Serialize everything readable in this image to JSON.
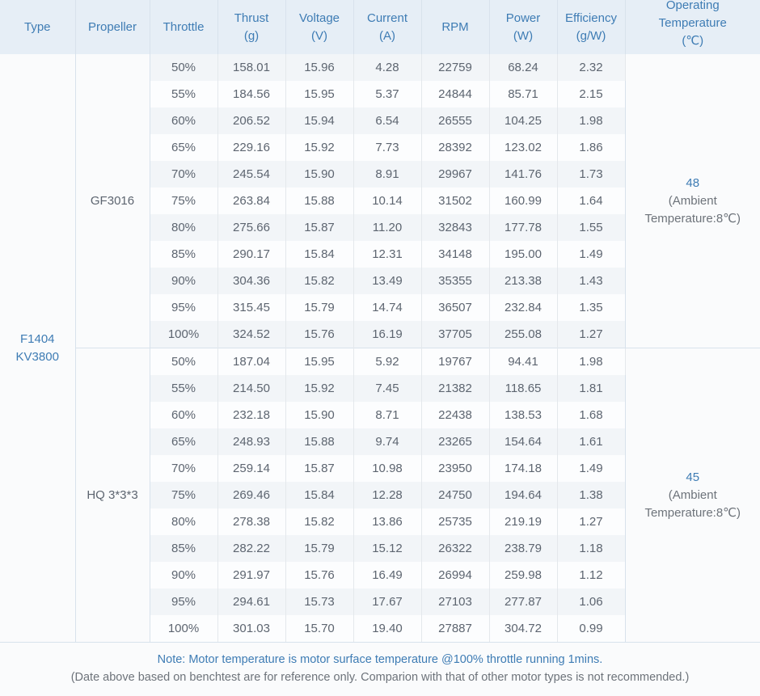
{
  "headers": {
    "type": "Type",
    "propeller": "Propeller",
    "throttle": "Throttle",
    "thrust": [
      "Thrust",
      "(g)"
    ],
    "voltage": [
      "Voltage",
      "(V)"
    ],
    "current": [
      "Current",
      "(A)"
    ],
    "rpm": "RPM",
    "power": [
      "Power",
      "(W)"
    ],
    "efficiency": [
      "Efficiency",
      "(g/W)"
    ],
    "operating_temperature": [
      "Operating",
      "Temperature",
      "(℃)"
    ]
  },
  "motor_type": [
    "F1404",
    "KV3800"
  ],
  "groups": [
    {
      "propeller": "GF3016",
      "temperature": "48",
      "temperature_note": [
        "(Ambient",
        "Temperature:8℃)"
      ],
      "rows": [
        [
          "50%",
          "158.01",
          "15.96",
          "4.28",
          "22759",
          "68.24",
          "2.32"
        ],
        [
          "55%",
          "184.56",
          "15.95",
          "5.37",
          "24844",
          "85.71",
          "2.15"
        ],
        [
          "60%",
          "206.52",
          "15.94",
          "6.54",
          "26555",
          "104.25",
          "1.98"
        ],
        [
          "65%",
          "229.16",
          "15.92",
          "7.73",
          "28392",
          "123.02",
          "1.86"
        ],
        [
          "70%",
          "245.54",
          "15.90",
          "8.91",
          "29967",
          "141.76",
          "1.73"
        ],
        [
          "75%",
          "263.84",
          "15.88",
          "10.14",
          "31502",
          "160.99",
          "1.64"
        ],
        [
          "80%",
          "275.66",
          "15.87",
          "11.20",
          "32843",
          "177.78",
          "1.55"
        ],
        [
          "85%",
          "290.17",
          "15.84",
          "12.31",
          "34148",
          "195.00",
          "1.49"
        ],
        [
          "90%",
          "304.36",
          "15.82",
          "13.49",
          "35355",
          "213.38",
          "1.43"
        ],
        [
          "95%",
          "315.45",
          "15.79",
          "14.74",
          "36507",
          "232.84",
          "1.35"
        ],
        [
          "100%",
          "324.52",
          "15.76",
          "16.19",
          "37705",
          "255.08",
          "1.27"
        ]
      ]
    },
    {
      "propeller": "HQ 3*3*3",
      "temperature": "45",
      "temperature_note": [
        "(Ambient",
        "Temperature:8℃)"
      ],
      "rows": [
        [
          "50%",
          "187.04",
          "15.95",
          "5.92",
          "19767",
          "94.41",
          "1.98"
        ],
        [
          "55%",
          "214.50",
          "15.92",
          "7.45",
          "21382",
          "118.65",
          "1.81"
        ],
        [
          "60%",
          "232.18",
          "15.90",
          "8.71",
          "22438",
          "138.53",
          "1.68"
        ],
        [
          "65%",
          "248.93",
          "15.88",
          "9.74",
          "23265",
          "154.64",
          "1.61"
        ],
        [
          "70%",
          "259.14",
          "15.87",
          "10.98",
          "23950",
          "174.18",
          "1.49"
        ],
        [
          "75%",
          "269.46",
          "15.84",
          "12.28",
          "24750",
          "194.64",
          "1.38"
        ],
        [
          "80%",
          "278.38",
          "15.82",
          "13.86",
          "25735",
          "219.19",
          "1.27"
        ],
        [
          "85%",
          "282.22",
          "15.79",
          "15.12",
          "26322",
          "238.79",
          "1.18"
        ],
        [
          "90%",
          "291.97",
          "15.76",
          "16.49",
          "26994",
          "259.98",
          "1.12"
        ],
        [
          "95%",
          "294.61",
          "15.73",
          "17.67",
          "27103",
          "277.87",
          "1.06"
        ],
        [
          "100%",
          "301.03",
          "15.70",
          "19.40",
          "27887",
          "304.72",
          "0.99"
        ]
      ]
    }
  ],
  "notes": [
    "Note: Motor temperature is motor surface temperature @100% throttle running 1mins.",
    "(Date above based on benchtest are for reference only. Comparion with that of other motor types is not recommended.)"
  ],
  "colors": {
    "header_background": "#e6eef6",
    "header_text": "#3e7cb4",
    "row_stripe": "#f2f5f8",
    "body_text": "#5d6570"
  }
}
